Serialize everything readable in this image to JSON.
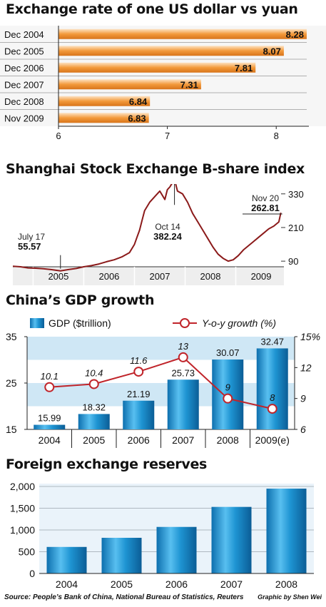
{
  "colors": {
    "orange": "#f39a3b",
    "blue": "#1e94d2",
    "red": "#c0242a",
    "stock_line": "#8b1a1a",
    "band": "#cfe7f5"
  },
  "chart_data": [
    {
      "type": "bar",
      "orientation": "horizontal",
      "title": "Exchange rate of one US dollar vs yuan",
      "categories": [
        "Dec 2004",
        "Dec 2005",
        "Dec 2006",
        "Dec 2007",
        "Dec 2008",
        "Nov 2009"
      ],
      "values": [
        8.28,
        8.07,
        7.81,
        7.31,
        6.84,
        6.83
      ],
      "value_labels": [
        "8.28",
        "8.07",
        "7.81",
        "7.31",
        "6.84",
        "6.83"
      ],
      "xlim": [
        6,
        8.3
      ],
      "xticks": [
        "6",
        "7",
        "8"
      ]
    },
    {
      "type": "line",
      "title": "Shanghai Stock Exchange B-share index",
      "x_tick_labels": [
        "2005",
        "2006",
        "2007",
        "2008",
        "2009"
      ],
      "y_tick_labels": [
        "330",
        "210",
        "90"
      ],
      "ylim": [
        70,
        360
      ],
      "xlim": [
        2004.6,
        2009.95
      ],
      "series": [
        {
          "x": [
            2004.6,
            2004.75,
            2004.9,
            2005.05,
            2005.2,
            2005.35,
            2005.54,
            2005.7,
            2005.85,
            2006.0,
            2006.15,
            2006.3,
            2006.45,
            2006.6,
            2006.75,
            2006.9,
            2007.0,
            2007.05,
            2007.1,
            2007.15,
            2007.2,
            2007.3,
            2007.4,
            2007.5,
            2007.6,
            2007.65,
            2007.7,
            2007.79,
            2007.85,
            2007.95,
            2008.05,
            2008.15,
            2008.25,
            2008.35,
            2008.45,
            2008.55,
            2008.65,
            2008.75,
            2008.85,
            2008.95,
            2009.05,
            2009.15,
            2009.25,
            2009.35,
            2009.45,
            2009.55,
            2009.65,
            2009.75,
            2009.85,
            2009.89
          ],
          "y": [
            72,
            70,
            66,
            65,
            63,
            60,
            55.57,
            60,
            64,
            70,
            74,
            80,
            88,
            95,
            105,
            120,
            150,
            175,
            200,
            235,
            270,
            300,
            320,
            340,
            310,
            345,
            355,
            382.24,
            340,
            330,
            300,
            260,
            230,
            200,
            170,
            140,
            115,
            100,
            90,
            95,
            110,
            130,
            145,
            160,
            175,
            190,
            205,
            215,
            230,
            262.81
          ]
        }
      ],
      "annotations": [
        {
          "label": "July 17",
          "value": "55.57"
        },
        {
          "label": "Oct 14",
          "value": "382.24"
        },
        {
          "label": "Nov 20",
          "value": "262.81"
        }
      ]
    },
    {
      "type": "bar",
      "title": "China’s GDP growth",
      "categories": [
        "2004",
        "2005",
        "2006",
        "2007",
        "2008",
        "2009(e)"
      ],
      "series": [
        {
          "name": "GDP ($trillion)",
          "type": "bar",
          "values": [
            15.99,
            18.32,
            21.19,
            25.73,
            30.07,
            32.47
          ],
          "value_labels": [
            "15.99",
            "18.32",
            "21.19",
            "25.73",
            "30.07",
            "32.47"
          ],
          "ylim": [
            15,
            35
          ],
          "yticks": [
            "15",
            "25",
            "35"
          ]
        },
        {
          "name": "Y-o-y growth (%)",
          "type": "line",
          "values": [
            10.1,
            10.4,
            11.6,
            13,
            9,
            8
          ],
          "value_labels": [
            "10.1",
            "10.4",
            "11.6",
            "13",
            "9",
            "8"
          ],
          "ylim": [
            6,
            15
          ],
          "yticks": [
            "6",
            "9",
            "12",
            "15%"
          ]
        }
      ]
    },
    {
      "type": "bar",
      "title": "Foreign exchange reserves",
      "categories": [
        "2004",
        "2005",
        "2006",
        "2007",
        "2008"
      ],
      "values": [
        610,
        820,
        1070,
        1530,
        1950
      ],
      "ylim": [
        0,
        2000
      ],
      "yticks": [
        "0",
        "500",
        "1,000",
        "1,500",
        "2,000"
      ]
    }
  ],
  "footer": {
    "source": "Source: People’s Bank of China, National Bureau of Statistics, Reuters",
    "credit": "Graphic by Shen Wei"
  }
}
